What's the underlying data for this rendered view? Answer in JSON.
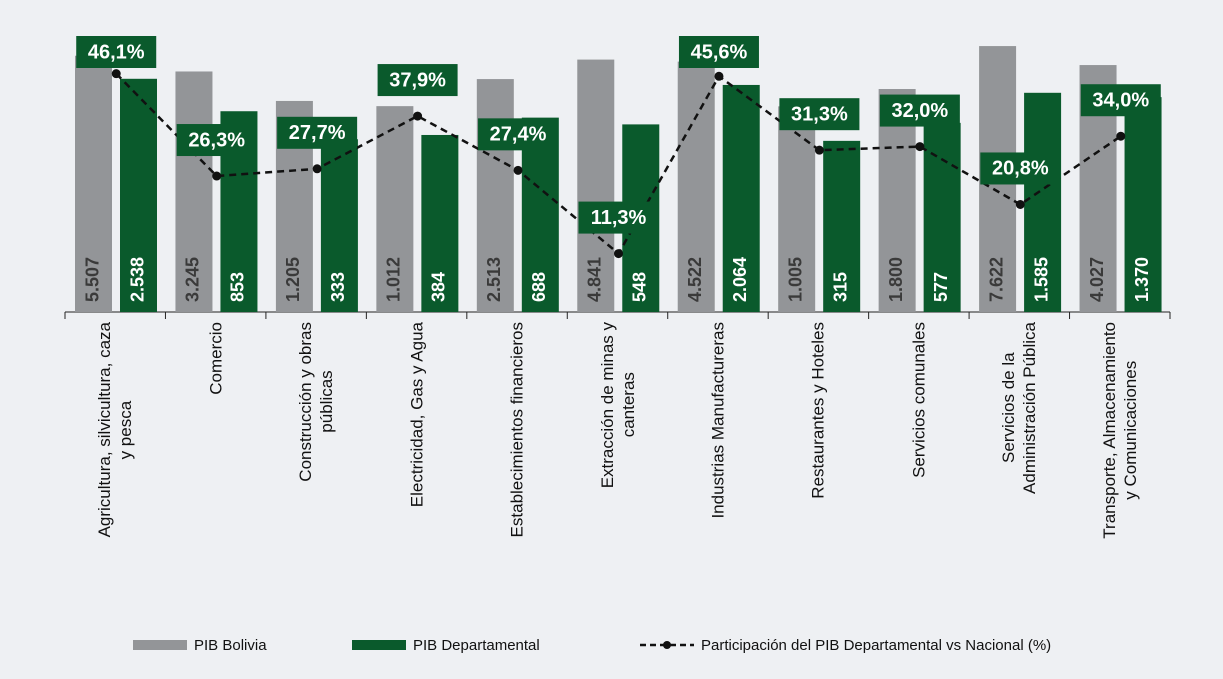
{
  "chart_data": {
    "type": "bar",
    "categories": [
      "Agricultura, silvicultura, caza\ny pesca",
      "Comercio",
      "Construcción y obras\npúblicas",
      "Electricidad, Gas y Agua",
      "Establecimientos financieros",
      "Extracción de minas y\ncanteras",
      "Industrias Manufactureras",
      "Restaurantes y Hoteles",
      "Servicios comunales",
      "Servicios de la\nAdministración Pública",
      "Transporte, Almacenamiento\ny Comunicaciones"
    ],
    "series": [
      {
        "name": "PIB Bolivia",
        "color": "#939598",
        "values": [
          5507,
          3245,
          1205,
          1012,
          2513,
          4841,
          4522,
          1005,
          1800,
          7622,
          4027
        ],
        "value_labels": [
          "5.507",
          "3.245",
          "1.205",
          "1.012",
          "2.513",
          "4.841",
          "4.522",
          "1.005",
          "1.800",
          "7.622",
          "4.027"
        ]
      },
      {
        "name": "PIB Departamental",
        "color": "#0a5a2c",
        "values": [
          2538,
          853,
          333,
          384,
          688,
          548,
          2064,
          315,
          577,
          1585,
          1370
        ],
        "value_labels": [
          "2.538",
          "853",
          "333",
          "384",
          "688",
          "548",
          "2.064",
          "315",
          "577",
          "1.585",
          "1.370"
        ]
      },
      {
        "name": "Participación del PIB Departamental vs Nacional (%)",
        "type": "line",
        "axis": "y2",
        "color": "#111111",
        "label_color": "#0a5a2c",
        "values": [
          46.1,
          26.3,
          27.7,
          37.9,
          27.4,
          11.3,
          45.6,
          31.3,
          32.0,
          20.8,
          34.0
        ],
        "value_labels": [
          "46,1%",
          "26,3%",
          "27,7%",
          "37,9%",
          "27,4%",
          "11,3%",
          "45,6%",
          "31,3%",
          "32,0%",
          "20,8%",
          "34,0%"
        ]
      }
    ],
    "ylim": [
      1,
      10000
    ],
    "log_scale": true,
    "y2lim": [
      0,
      53
    ],
    "legend": "bottom"
  }
}
